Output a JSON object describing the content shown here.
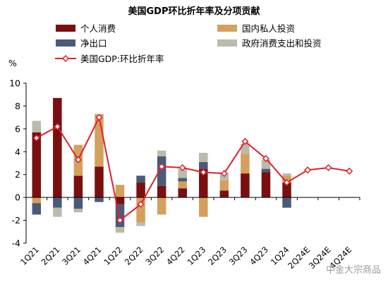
{
  "chart_data": {
    "type": "bar",
    "stacked": true,
    "title": "美国GDP环比折年率及分项贡献",
    "ylabel": "%",
    "ylim": [
      -4,
      10
    ],
    "yticks": [
      -4,
      -2,
      0,
      2,
      4,
      6,
      8,
      10
    ],
    "grid": false,
    "legend_position": "top",
    "categories": [
      "1Q21",
      "2Q21",
      "3Q21",
      "4Q21",
      "1Q22",
      "2Q22",
      "3Q22",
      "4Q22",
      "1Q23",
      "2Q23",
      "3Q23",
      "4Q23",
      "1Q24",
      "2Q24E",
      "3Q24E",
      "4Q24E"
    ],
    "x_tick_labels": [
      "1Q21",
      "2Q21",
      "3Q21",
      "4Q21",
      "1Q22",
      "2Q22",
      "3Q22",
      "4Q22",
      "1Q23",
      "2Q23",
      "3Q23",
      "4Q23",
      "1Q24",
      "2Q24E",
      "3Q24E",
      "4Q24E"
    ],
    "series": [
      {
        "name": "个人消费",
        "kind": "bar",
        "color": "#7a0f10",
        "values": [
          5.7,
          8.7,
          1.9,
          2.7,
          -0.6,
          1.3,
          1.0,
          0.8,
          2.5,
          0.6,
          2.1,
          2.2,
          1.3,
          null,
          null,
          null
        ]
      },
      {
        "name": "国内私人投资",
        "kind": "bar",
        "color": "#d4a05e",
        "values": [
          -0.5,
          0.0,
          2.7,
          4.6,
          1.1,
          -2.2,
          -1.5,
          0.6,
          -1.7,
          0.9,
          1.7,
          0.0,
          0.6,
          null,
          null,
          null
        ]
      },
      {
        "name": "净出口",
        "kind": "bar",
        "color": "#4a5a78",
        "values": [
          -1.0,
          -0.9,
          -1.0,
          -0.4,
          -2.0,
          0.6,
          2.6,
          0.3,
          0.6,
          0.0,
          0.0,
          0.3,
          -0.9,
          null,
          null,
          null
        ]
      },
      {
        "name": "政府消费支出和投资",
        "kind": "bar",
        "color": "#b9bcab",
        "values": [
          1.0,
          -0.8,
          -0.3,
          0.0,
          -0.5,
          -0.3,
          0.5,
          0.8,
          0.8,
          0.6,
          0.9,
          0.8,
          0.2,
          null,
          null,
          null
        ]
      },
      {
        "name": "美国GDP:环比折年率",
        "kind": "line",
        "color": "#e0202a",
        "values": [
          5.2,
          6.2,
          3.3,
          7.0,
          -2.0,
          -0.6,
          2.7,
          2.6,
          2.2,
          2.1,
          4.9,
          3.4,
          1.3,
          2.4,
          2.6,
          2.3
        ]
      }
    ]
  },
  "watermark": "中金大宗商品"
}
